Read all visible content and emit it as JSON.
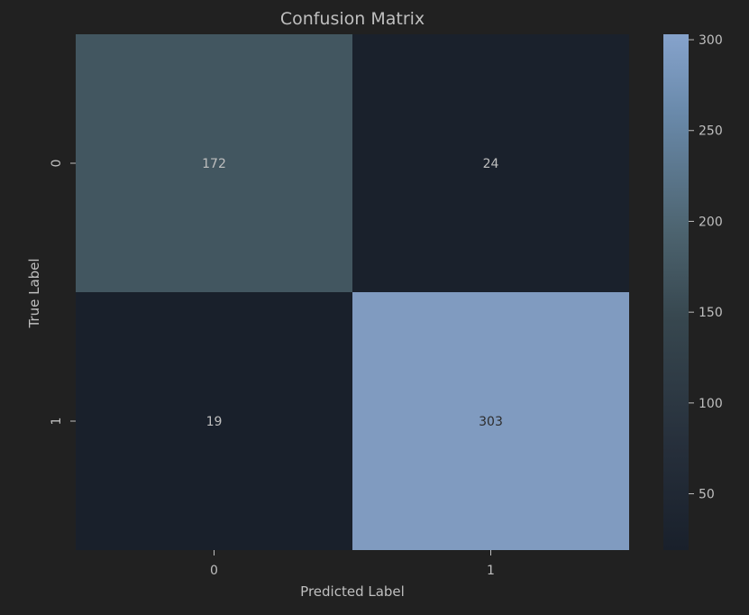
{
  "chart_data": {
    "type": "heatmap",
    "title": "Confusion Matrix",
    "xlabel": "Predicted Label",
    "ylabel": "True Label",
    "x_categories": [
      "0",
      "1"
    ],
    "y_categories": [
      "0",
      "1"
    ],
    "values": [
      [
        172,
        24
      ],
      [
        19,
        303
      ]
    ],
    "cell_labels": [
      [
        "172",
        "24"
      ],
      [
        "19",
        "303"
      ]
    ],
    "colorbar": {
      "min": 19,
      "max": 303,
      "ticks": [
        50,
        100,
        150,
        200,
        250,
        300
      ],
      "tick_labels": [
        "50",
        "100",
        "150",
        "200",
        "250",
        "300"
      ],
      "colors": [
        "#19202b",
        "#262f3b",
        "#37474f",
        "#4d6470",
        "#6a8aab",
        "#86a3cc"
      ]
    },
    "grid": false
  },
  "colors": {
    "background": "#212121",
    "text": "#bfbfbf"
  }
}
